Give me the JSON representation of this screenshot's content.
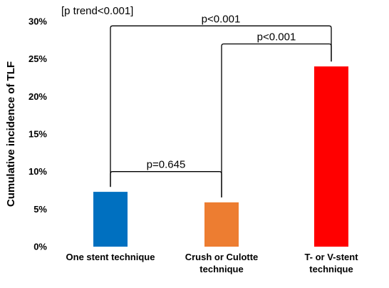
{
  "chart_data": {
    "type": "bar",
    "ylabel": "Cumulative incidence of TLF",
    "ylim": [
      0,
      30
    ],
    "yticks": [
      0,
      5,
      10,
      15,
      20,
      25,
      30
    ],
    "ytick_suffix": "%",
    "grid": false,
    "categories": [
      [
        "One stent technique"
      ],
      [
        "Crush or Culotte",
        "technique"
      ],
      [
        "T- or V-stent",
        "technique"
      ]
    ],
    "values": [
      7.3,
      5.9,
      24.0
    ],
    "colors": [
      "#0070C0",
      "#ED7D31",
      "#FF0000"
    ],
    "trend_annotation": "[p trend<0.001]",
    "comparisons": [
      {
        "from": 0,
        "to": 1,
        "label": "p=0.645",
        "level": 10.0
      },
      {
        "from": 1,
        "to": 2,
        "label": "p<0.001",
        "level": 27.0
      },
      {
        "from": 0,
        "to": 2,
        "label": "p<0.001",
        "level": 29.4
      }
    ]
  }
}
